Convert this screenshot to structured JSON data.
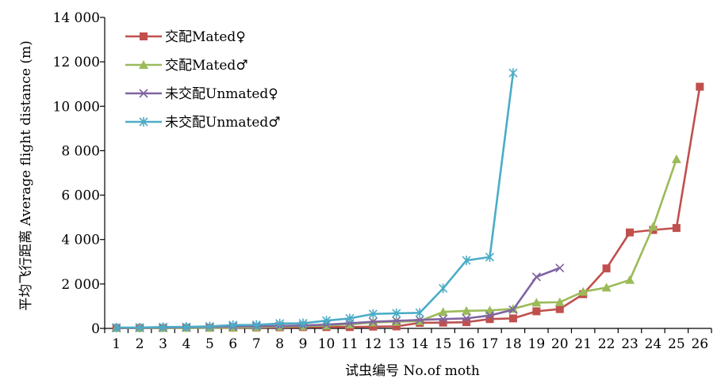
{
  "chart_data": {
    "type": "line",
    "title": "",
    "xlabel": "试虫编号 No.of moth",
    "ylabel": "平均飞行距离 Average flight distance (m)",
    "ylim": [
      0,
      14000
    ],
    "yticks": [
      0,
      2000,
      4000,
      6000,
      8000,
      10000,
      12000,
      14000
    ],
    "ytick_labels": [
      "0",
      "2 000",
      "4 000",
      "6 000",
      "8 000",
      "10 000",
      "12 000",
      "14 000"
    ],
    "categories": [
      "1",
      "2",
      "3",
      "4",
      "5",
      "6",
      "7",
      "8",
      "9",
      "10",
      "11",
      "12",
      "13",
      "14",
      "15",
      "16",
      "17",
      "18",
      "19",
      "20",
      "21",
      "22",
      "23",
      "24",
      "25",
      "26"
    ],
    "grid": false,
    "legend_position": "top-left",
    "series": [
      {
        "name": "交配Mated♀",
        "color": "#c0504d",
        "marker": "square",
        "values": [
          20,
          20,
          20,
          30,
          30,
          30,
          40,
          50,
          60,
          60,
          60,
          80,
          90,
          250,
          260,
          280,
          420,
          450,
          770,
          870,
          1540,
          2700,
          4320,
          4430,
          4520,
          10880
        ]
      },
      {
        "name": "交配Mated♂",
        "color": "#9bbb59",
        "marker": "triangle",
        "values": [
          20,
          20,
          20,
          30,
          30,
          40,
          60,
          80,
          100,
          130,
          180,
          270,
          300,
          330,
          740,
          790,
          810,
          880,
          1160,
          1180,
          1650,
          1840,
          2180,
          4580,
          7620,
          null
        ]
      },
      {
        "name": "未交配Unmated♀",
        "color": "#8064a2",
        "marker": "x",
        "values": [
          20,
          30,
          40,
          50,
          70,
          90,
          100,
          110,
          130,
          170,
          230,
          300,
          340,
          380,
          420,
          450,
          580,
          840,
          2320,
          2720,
          null,
          null,
          null,
          null,
          null,
          null
        ]
      },
      {
        "name": "未交配Unmated♂",
        "color": "#4bacc6",
        "marker": "asterisk",
        "values": [
          40,
          40,
          60,
          70,
          90,
          150,
          160,
          220,
          230,
          350,
          450,
          650,
          680,
          700,
          1800,
          3060,
          3210,
          11500,
          null,
          null,
          null,
          null,
          null,
          null,
          null,
          null
        ]
      }
    ]
  }
}
